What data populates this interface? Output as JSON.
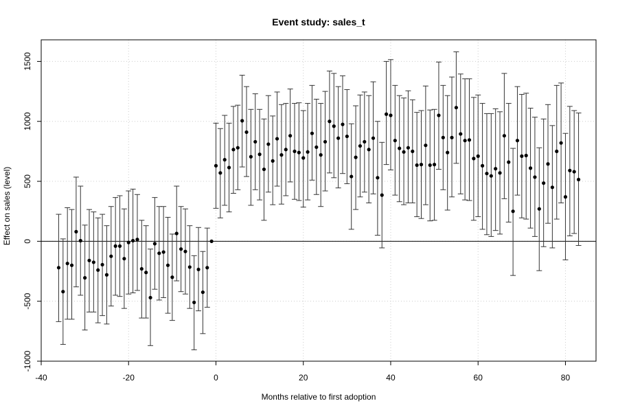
{
  "chart_data": {
    "type": "scatter",
    "title": "Event study: sales_t",
    "xlabel": "Months relative to first adoption",
    "ylabel": "Effect on sales (level)",
    "xlim": [
      -40,
      87
    ],
    "ylim": [
      -1000,
      1680
    ],
    "xticks": [
      -40,
      -20,
      0,
      20,
      40,
      60,
      80
    ],
    "yticks": [
      -1000,
      -500,
      0,
      500,
      1000,
      1500
    ],
    "grid": true,
    "reference_line_y": 0,
    "series": [
      {
        "points": [
          {
            "x": -36,
            "y": -220,
            "lo": -670,
            "hi": 225
          },
          {
            "x": -35,
            "y": -420,
            "lo": -860,
            "hi": 20
          },
          {
            "x": -34,
            "y": -185,
            "lo": -650,
            "hi": 280
          },
          {
            "x": -33,
            "y": -200,
            "lo": -650,
            "hi": 265
          },
          {
            "x": -32,
            "y": 80,
            "lo": -380,
            "hi": 535
          },
          {
            "x": -31,
            "y": 5,
            "lo": -450,
            "hi": 460
          },
          {
            "x": -30,
            "y": -305,
            "lo": -740,
            "hi": 135
          },
          {
            "x": -29,
            "y": -160,
            "lo": -590,
            "hi": 265
          },
          {
            "x": -28,
            "y": -175,
            "lo": -590,
            "hi": 245
          },
          {
            "x": -27,
            "y": -240,
            "lo": -680,
            "hi": 195
          },
          {
            "x": -26,
            "y": -195,
            "lo": -620,
            "hi": 225
          },
          {
            "x": -25,
            "y": -280,
            "lo": -690,
            "hi": 130
          },
          {
            "x": -24,
            "y": -125,
            "lo": -540,
            "hi": 290
          },
          {
            "x": -23,
            "y": -40,
            "lo": -450,
            "hi": 365
          },
          {
            "x": -22,
            "y": -40,
            "lo": -460,
            "hi": 380
          },
          {
            "x": -21,
            "y": -145,
            "lo": -560,
            "hi": 270
          },
          {
            "x": -20,
            "y": -10,
            "lo": -440,
            "hi": 420
          },
          {
            "x": -19,
            "y": 5,
            "lo": -430,
            "hi": 435
          },
          {
            "x": -18,
            "y": 15,
            "lo": -410,
            "hi": 390
          },
          {
            "x": -17,
            "y": -230,
            "lo": -640,
            "hi": 175
          },
          {
            "x": -16,
            "y": -260,
            "lo": -640,
            "hi": 130
          },
          {
            "x": -15,
            "y": -470,
            "lo": -870,
            "hi": -65
          },
          {
            "x": -14,
            "y": -20,
            "lo": -400,
            "hi": 365
          },
          {
            "x": -13,
            "y": -100,
            "lo": -490,
            "hi": 290
          },
          {
            "x": -12,
            "y": -90,
            "lo": -470,
            "hi": 290
          },
          {
            "x": -11,
            "y": -200,
            "lo": -600,
            "hi": 200
          },
          {
            "x": -10,
            "y": -300,
            "lo": -660,
            "hi": 60
          },
          {
            "x": -9,
            "y": 65,
            "lo": -330,
            "hi": 460
          },
          {
            "x": -8,
            "y": -65,
            "lo": -420,
            "hi": 290
          },
          {
            "x": -7,
            "y": -85,
            "lo": -440,
            "hi": 270
          },
          {
            "x": -6,
            "y": -215,
            "lo": -560,
            "hi": 130
          },
          {
            "x": -5,
            "y": -510,
            "lo": -905,
            "hi": -120
          },
          {
            "x": -4,
            "y": -235,
            "lo": -580,
            "hi": 115
          },
          {
            "x": -3,
            "y": -425,
            "lo": -770,
            "hi": -85
          },
          {
            "x": -2,
            "y": -220,
            "lo": -550,
            "hi": 110
          },
          {
            "x": -1,
            "y": 0,
            "lo": 0,
            "hi": 0
          },
          {
            "x": 0,
            "y": 630,
            "lo": 275,
            "hi": 985
          },
          {
            "x": 1,
            "y": 570,
            "lo": 195,
            "hi": 940
          },
          {
            "x": 2,
            "y": 680,
            "lo": 300,
            "hi": 1050
          },
          {
            "x": 3,
            "y": 615,
            "lo": 245,
            "hi": 985
          },
          {
            "x": 4,
            "y": 765,
            "lo": 400,
            "hi": 1125
          },
          {
            "x": 5,
            "y": 780,
            "lo": 430,
            "hi": 1135
          },
          {
            "x": 6,
            "y": 1005,
            "lo": 620,
            "hi": 1385
          },
          {
            "x": 7,
            "y": 910,
            "lo": 540,
            "hi": 1290
          },
          {
            "x": 8,
            "y": 705,
            "lo": 300,
            "hi": 1100
          },
          {
            "x": 9,
            "y": 830,
            "lo": 430,
            "hi": 1230
          },
          {
            "x": 10,
            "y": 725,
            "lo": 345,
            "hi": 1100
          },
          {
            "x": 11,
            "y": 600,
            "lo": 175,
            "hi": 1020
          },
          {
            "x": 12,
            "y": 810,
            "lo": 410,
            "hi": 1215
          },
          {
            "x": 13,
            "y": 670,
            "lo": 305,
            "hi": 1045
          },
          {
            "x": 14,
            "y": 855,
            "lo": 460,
            "hi": 1245
          },
          {
            "x": 15,
            "y": 720,
            "lo": 310,
            "hi": 1140
          },
          {
            "x": 16,
            "y": 765,
            "lo": 380,
            "hi": 1150
          },
          {
            "x": 17,
            "y": 880,
            "lo": 495,
            "hi": 1270
          },
          {
            "x": 18,
            "y": 750,
            "lo": 350,
            "hi": 1150
          },
          {
            "x": 19,
            "y": 740,
            "lo": 340,
            "hi": 1155
          },
          {
            "x": 20,
            "y": 695,
            "lo": 285,
            "hi": 1090
          },
          {
            "x": 21,
            "y": 745,
            "lo": 345,
            "hi": 1150
          },
          {
            "x": 22,
            "y": 900,
            "lo": 510,
            "hi": 1300
          },
          {
            "x": 23,
            "y": 785,
            "lo": 390,
            "hi": 1185
          },
          {
            "x": 24,
            "y": 720,
            "lo": 290,
            "hi": 1150
          },
          {
            "x": 25,
            "y": 830,
            "lo": 420,
            "hi": 1250
          },
          {
            "x": 26,
            "y": 1000,
            "lo": 570,
            "hi": 1420
          },
          {
            "x": 27,
            "y": 960,
            "lo": 530,
            "hi": 1400
          },
          {
            "x": 28,
            "y": 860,
            "lo": 445,
            "hi": 1290
          },
          {
            "x": 29,
            "y": 975,
            "lo": 565,
            "hi": 1380
          },
          {
            "x": 30,
            "y": 875,
            "lo": 480,
            "hi": 1265
          },
          {
            "x": 31,
            "y": 540,
            "lo": 100,
            "hi": 980
          },
          {
            "x": 32,
            "y": 700,
            "lo": 265,
            "hi": 1130
          },
          {
            "x": 33,
            "y": 795,
            "lo": 370,
            "hi": 1220
          },
          {
            "x": 34,
            "y": 830,
            "lo": 410,
            "hi": 1245
          },
          {
            "x": 35,
            "y": 765,
            "lo": 320,
            "hi": 1215
          },
          {
            "x": 36,
            "y": 860,
            "lo": 395,
            "hi": 1330
          },
          {
            "x": 37,
            "y": 530,
            "lo": 50,
            "hi": 1000
          },
          {
            "x": 38,
            "y": 385,
            "lo": -55,
            "hi": 825
          },
          {
            "x": 39,
            "y": 1060,
            "lo": 640,
            "hi": 1500
          },
          {
            "x": 40,
            "y": 1050,
            "lo": 595,
            "hi": 1515
          },
          {
            "x": 41,
            "y": 840,
            "lo": 385,
            "hi": 1300
          },
          {
            "x": 42,
            "y": 775,
            "lo": 330,
            "hi": 1215
          },
          {
            "x": 43,
            "y": 745,
            "lo": 305,
            "hi": 1195
          },
          {
            "x": 44,
            "y": 780,
            "lo": 320,
            "hi": 1255
          },
          {
            "x": 45,
            "y": 750,
            "lo": 320,
            "hi": 1180
          },
          {
            "x": 46,
            "y": 635,
            "lo": 205,
            "hi": 1075
          },
          {
            "x": 47,
            "y": 640,
            "lo": 190,
            "hi": 1090
          },
          {
            "x": 48,
            "y": 800,
            "lo": 305,
            "hi": 1295
          },
          {
            "x": 49,
            "y": 635,
            "lo": 170,
            "hi": 1095
          },
          {
            "x": 50,
            "y": 640,
            "lo": 175,
            "hi": 1100
          },
          {
            "x": 51,
            "y": 1050,
            "lo": 600,
            "hi": 1495
          },
          {
            "x": 52,
            "y": 865,
            "lo": 430,
            "hi": 1300
          },
          {
            "x": 53,
            "y": 740,
            "lo": 260,
            "hi": 1215
          },
          {
            "x": 54,
            "y": 865,
            "lo": 370,
            "hi": 1370
          },
          {
            "x": 55,
            "y": 1115,
            "lo": 650,
            "hi": 1580
          },
          {
            "x": 56,
            "y": 895,
            "lo": 395,
            "hi": 1395
          },
          {
            "x": 57,
            "y": 840,
            "lo": 345,
            "hi": 1355
          },
          {
            "x": 58,
            "y": 845,
            "lo": 340,
            "hi": 1355
          },
          {
            "x": 59,
            "y": 690,
            "lo": 175,
            "hi": 1200
          },
          {
            "x": 60,
            "y": 710,
            "lo": 205,
            "hi": 1220
          },
          {
            "x": 61,
            "y": 630,
            "lo": 100,
            "hi": 1150
          },
          {
            "x": 62,
            "y": 565,
            "lo": 55,
            "hi": 1065
          },
          {
            "x": 63,
            "y": 545,
            "lo": 40,
            "hi": 1065
          },
          {
            "x": 64,
            "y": 605,
            "lo": 90,
            "hi": 1105
          },
          {
            "x": 65,
            "y": 570,
            "lo": 60,
            "hi": 1080
          },
          {
            "x": 66,
            "y": 880,
            "lo": 355,
            "hi": 1400
          },
          {
            "x": 67,
            "y": 660,
            "lo": 160,
            "hi": 1150
          },
          {
            "x": 68,
            "y": 250,
            "lo": -285,
            "hi": 775
          },
          {
            "x": 69,
            "y": 840,
            "lo": 385,
            "hi": 1290
          },
          {
            "x": 70,
            "y": 710,
            "lo": 195,
            "hi": 1225
          },
          {
            "x": 71,
            "y": 715,
            "lo": 185,
            "hi": 1235
          },
          {
            "x": 72,
            "y": 610,
            "lo": 110,
            "hi": 1110
          },
          {
            "x": 73,
            "y": 535,
            "lo": 40,
            "hi": 1035
          },
          {
            "x": 74,
            "y": 270,
            "lo": -245,
            "hi": 780
          },
          {
            "x": 75,
            "y": 485,
            "lo": -45,
            "hi": 1020
          },
          {
            "x": 76,
            "y": 645,
            "lo": 150,
            "hi": 1140
          },
          {
            "x": 77,
            "y": 450,
            "lo": -55,
            "hi": 965
          },
          {
            "x": 78,
            "y": 750,
            "lo": 185,
            "hi": 1300
          },
          {
            "x": 79,
            "y": 820,
            "lo": 320,
            "hi": 1320
          },
          {
            "x": 80,
            "y": 370,
            "lo": -155,
            "hi": 900
          },
          {
            "x": 81,
            "y": 590,
            "lo": 45,
            "hi": 1125
          },
          {
            "x": 82,
            "y": 580,
            "lo": 65,
            "hi": 1090
          },
          {
            "x": 83,
            "y": 515,
            "lo": -35,
            "hi": 1070
          }
        ]
      }
    ]
  }
}
